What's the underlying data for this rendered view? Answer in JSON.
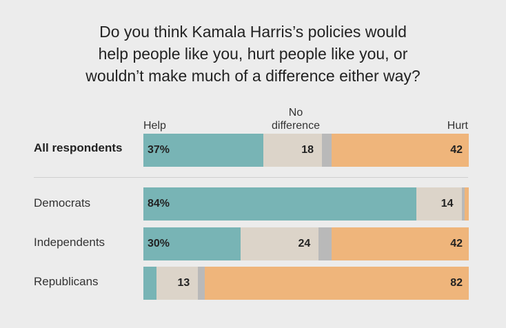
{
  "title_lines": [
    "Do you think Kamala Harris’s policies would",
    "help people like you, hurt people like you, or",
    "wouldn’t make much of a difference either way?"
  ],
  "columns": {
    "help": "Help",
    "nodiff_line1": "No",
    "nodiff_line2": "difference",
    "hurt": "Hurt"
  },
  "colors": {
    "help": "#78b4b5",
    "nodiff": "#dcd4c9",
    "unsure": "#b9b9b9",
    "hurt": "#efb57b",
    "background": "#ececec"
  },
  "chart_data": {
    "type": "bar",
    "orientation": "horizontal-stacked-100",
    "categories": [
      "All respondents",
      "Democrats",
      "Independents",
      "Republicans"
    ],
    "series": [
      {
        "name": "Help",
        "values": [
          37,
          84,
          30,
          4
        ]
      },
      {
        "name": "No difference",
        "values": [
          18,
          14,
          24,
          13
        ]
      },
      {
        "name": "",
        "values": [
          3,
          1,
          4,
          2
        ]
      },
      {
        "name": "Hurt",
        "values": [
          42,
          1,
          42,
          82
        ]
      }
    ],
    "value_labels": [
      [
        "37%",
        "18",
        "",
        "42"
      ],
      [
        "84%",
        "14",
        "",
        ""
      ],
      [
        "30%",
        "24",
        "",
        "42"
      ],
      [
        "",
        "13",
        "",
        "82"
      ]
    ]
  }
}
